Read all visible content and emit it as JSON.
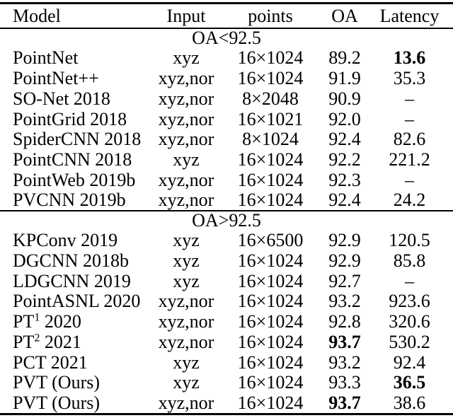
{
  "colors": {
    "background": "#ffffff",
    "text": "#000000",
    "rule": "#000000"
  },
  "table": {
    "columns": [
      {
        "label": "Model",
        "align": "left"
      },
      {
        "label": "Input",
        "align": "center"
      },
      {
        "label": "points",
        "align": "center"
      },
      {
        "label": "OA",
        "align": "center"
      },
      {
        "label": "Latency",
        "align": "center"
      }
    ],
    "sections": [
      {
        "title": "OA<92.5",
        "rows": [
          {
            "model": "PointNet",
            "model_sup": "",
            "model_rest": "",
            "input": "xyz",
            "points": "16×1024",
            "oa": "89.2",
            "oa_bold": false,
            "latency": "13.6",
            "latency_bold": true
          },
          {
            "model": "PointNet++",
            "model_sup": "",
            "model_rest": "",
            "input": "xyz,nor",
            "points": "16×1024",
            "oa": "91.9",
            "oa_bold": false,
            "latency": "35.3",
            "latency_bold": false
          },
          {
            "model": "SO-Net 2018",
            "model_sup": "",
            "model_rest": "",
            "input": "xyz,nor",
            "points": "8×2048",
            "oa": "90.9",
            "oa_bold": false,
            "latency": "–",
            "latency_bold": false
          },
          {
            "model": "PointGrid 2018",
            "model_sup": "",
            "model_rest": "",
            "input": "xyz,nor",
            "points": "16×1021",
            "oa": "92.0",
            "oa_bold": false,
            "latency": "–",
            "latency_bold": false
          },
          {
            "model": "SpiderCNN 2018",
            "model_sup": "",
            "model_rest": "",
            "input": "xyz,nor",
            "points": "8×1024",
            "oa": "92.4",
            "oa_bold": false,
            "latency": "82.6",
            "latency_bold": false
          },
          {
            "model": "PointCNN 2018",
            "model_sup": "",
            "model_rest": "",
            "input": "xyz",
            "points": "16×1024",
            "oa": "92.2",
            "oa_bold": false,
            "latency": "221.2",
            "latency_bold": false
          },
          {
            "model": "PointWeb 2019b",
            "model_sup": "",
            "model_rest": "",
            "input": "xyz,nor",
            "points": "16×1024",
            "oa": "92.3",
            "oa_bold": false,
            "latency": "–",
            "latency_bold": false
          },
          {
            "model": "PVCNN 2019b",
            "model_sup": "",
            "model_rest": "",
            "input": "xyz,nor",
            "points": "16×1024",
            "oa": "92.4",
            "oa_bold": false,
            "latency": "24.2",
            "latency_bold": false
          }
        ]
      },
      {
        "title": "OA>92.5",
        "rows": [
          {
            "model": "KPConv 2019",
            "model_sup": "",
            "model_rest": "",
            "input": "xyz",
            "points": "16×6500",
            "oa": "92.9",
            "oa_bold": false,
            "latency": "120.5",
            "latency_bold": false
          },
          {
            "model": "DGCNN 2018b",
            "model_sup": "",
            "model_rest": "",
            "input": "xyz",
            "points": "16×1024",
            "oa": "92.9",
            "oa_bold": false,
            "latency": "85.8",
            "latency_bold": false
          },
          {
            "model": "LDGCNN 2019",
            "model_sup": "",
            "model_rest": "",
            "input": "xyz",
            "points": "16×1024",
            "oa": "92.7",
            "oa_bold": false,
            "latency": "–",
            "latency_bold": false
          },
          {
            "model": "PointASNL 2020",
            "model_sup": "",
            "model_rest": "",
            "input": "xyz,nor",
            "points": "16×1024",
            "oa": "93.2",
            "oa_bold": false,
            "latency": "923.6",
            "latency_bold": false
          },
          {
            "model": "PT",
            "model_sup": "1",
            "model_rest": " 2020",
            "input": "xyz,nor",
            "points": "16×1024",
            "oa": "92.8",
            "oa_bold": false,
            "latency": "320.6",
            "latency_bold": false
          },
          {
            "model": "PT",
            "model_sup": "2",
            "model_rest": " 2021",
            "input": "xyz,nor",
            "points": "16×1024",
            "oa": "93.7",
            "oa_bold": true,
            "latency": "530.2",
            "latency_bold": false
          },
          {
            "model": "PCT 2021",
            "model_sup": "",
            "model_rest": "",
            "input": "xyz",
            "points": "16×1024",
            "oa": "93.2",
            "oa_bold": false,
            "latency": "92.4",
            "latency_bold": false
          },
          {
            "model": "PVT (Ours)",
            "model_sup": "",
            "model_rest": "",
            "input": "xyz",
            "points": "16×1024",
            "oa": "93.3",
            "oa_bold": false,
            "latency": "36.5",
            "latency_bold": true
          },
          {
            "model": "PVT (Ours)",
            "model_sup": "",
            "model_rest": "",
            "input": "xyz,nor",
            "points": "16×1024",
            "oa": "93.7",
            "oa_bold": true,
            "latency": "38.6",
            "latency_bold": false
          }
        ]
      }
    ]
  }
}
